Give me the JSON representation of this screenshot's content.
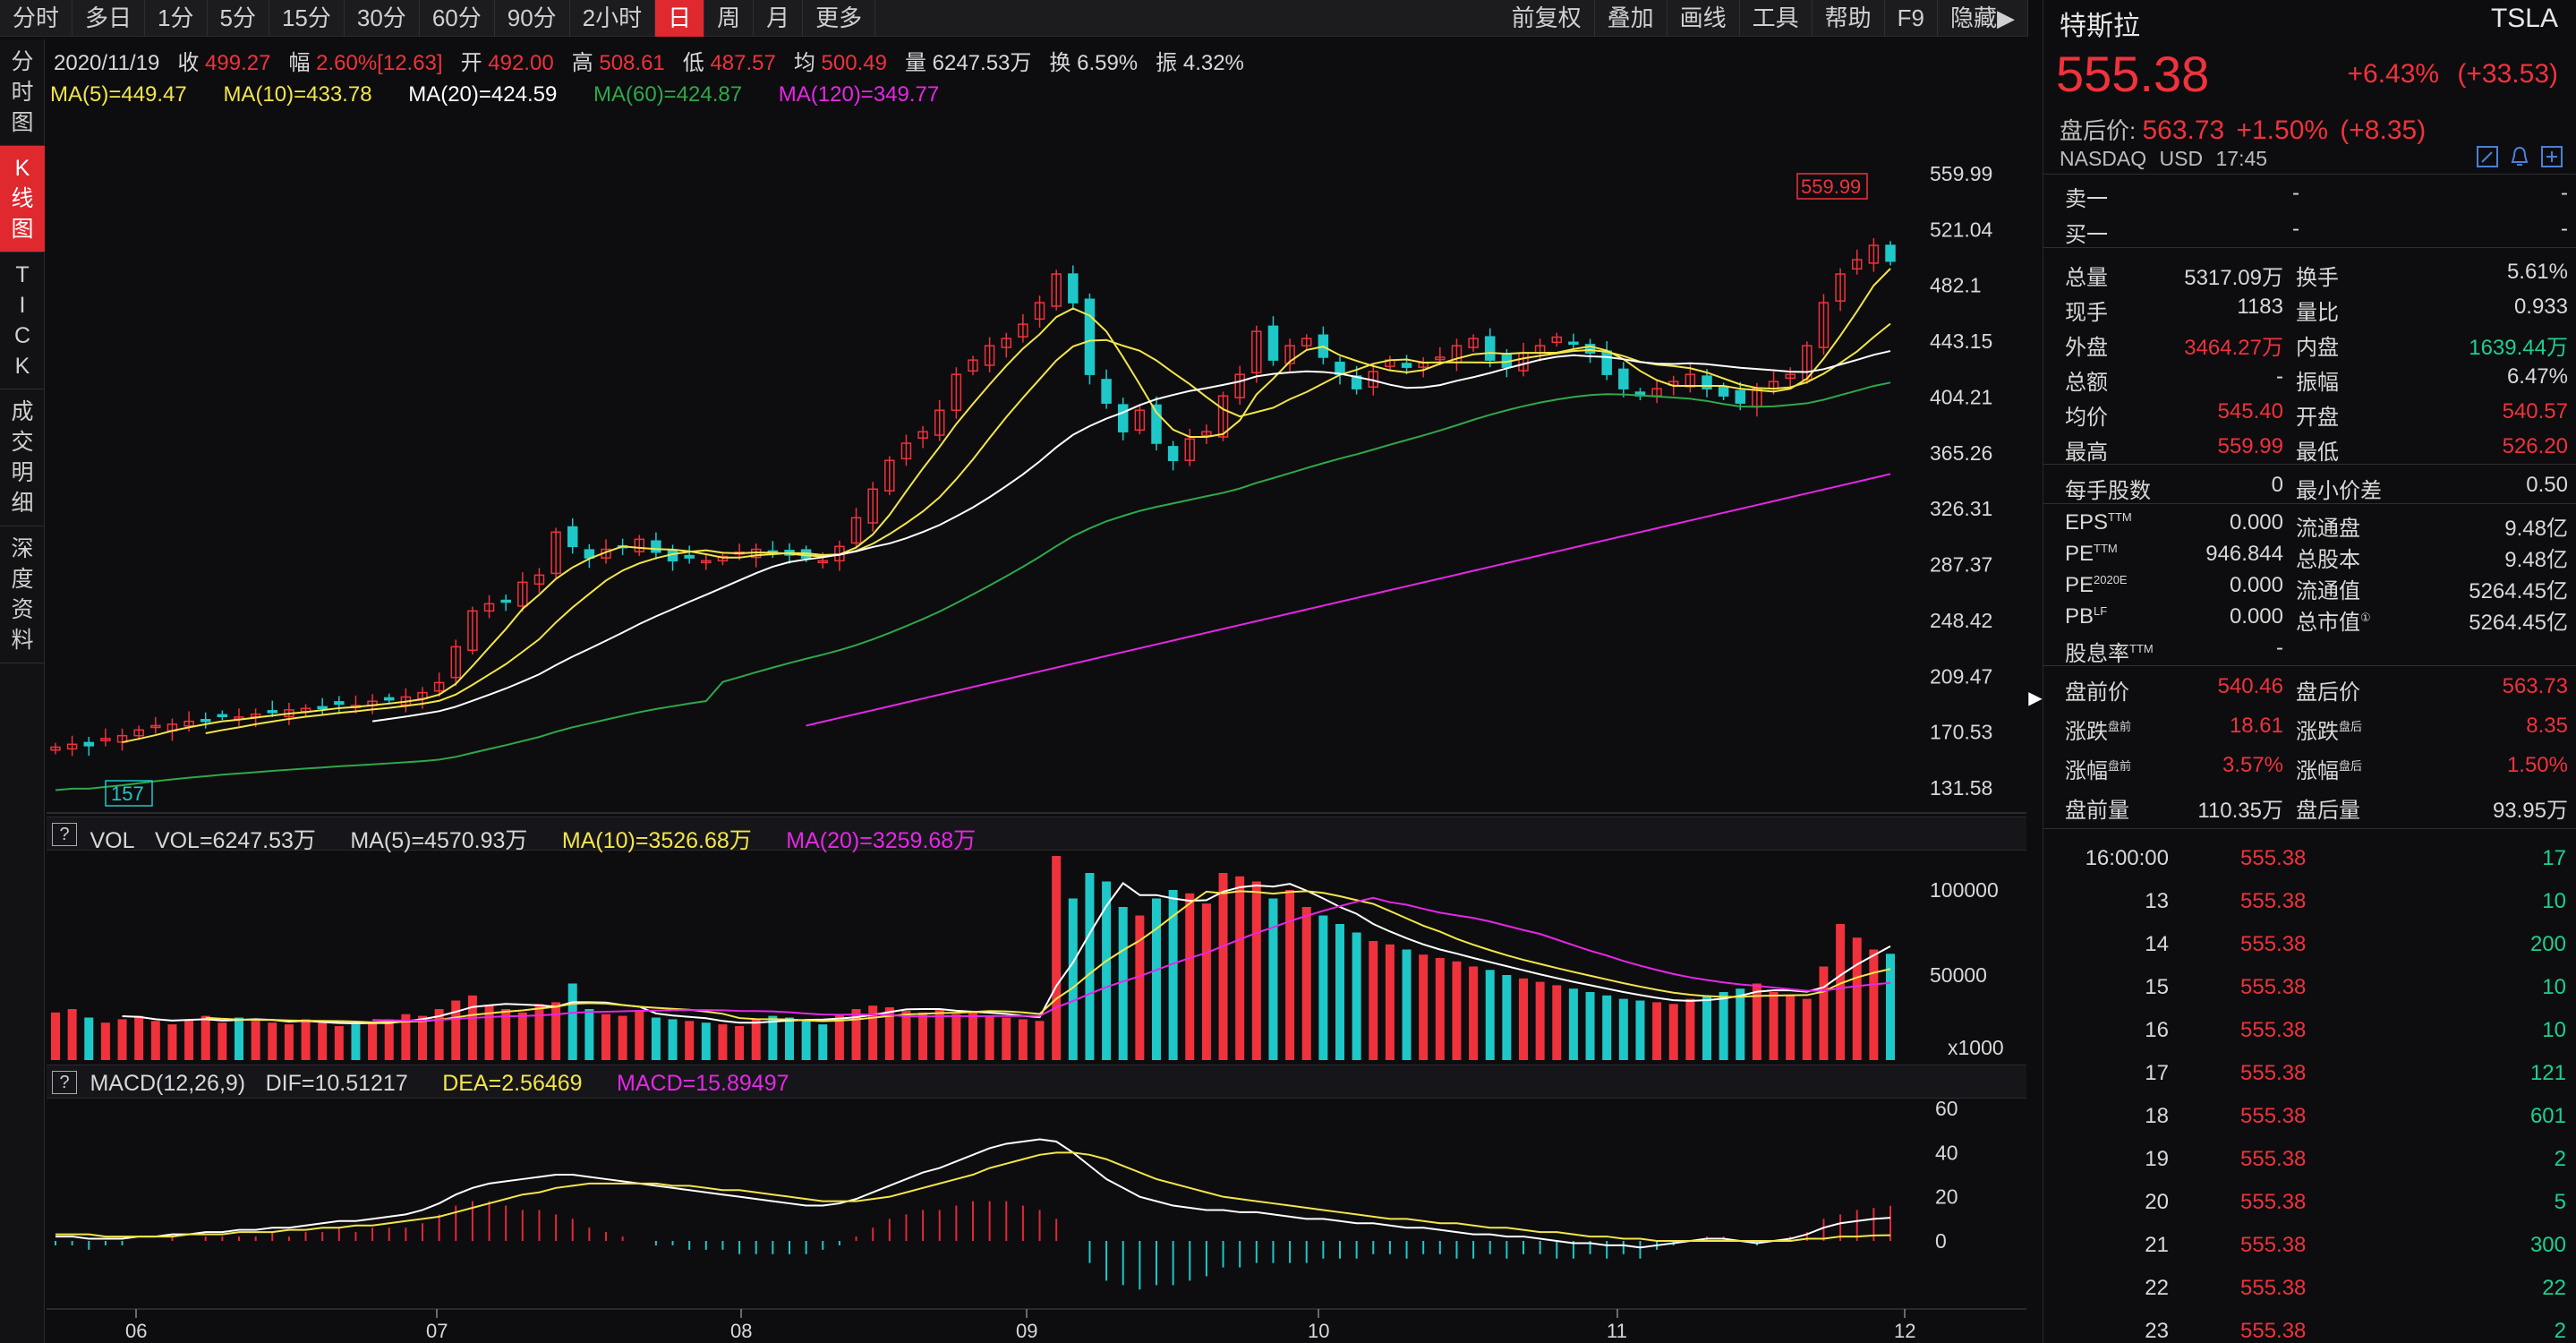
{
  "toolbar": {
    "left": [
      "分时",
      "多日",
      "1分",
      "5分",
      "15分",
      "30分",
      "60分",
      "90分",
      "2小时",
      "日",
      "周",
      "月",
      "更多"
    ],
    "active_index": 9,
    "right": [
      "前复权",
      "叠加",
      "画线",
      "工具",
      "帮助",
      "F9",
      "隐藏▶"
    ]
  },
  "left_tabs": [
    {
      "label": "分时图",
      "active": false
    },
    {
      "label": "K线图",
      "active": true
    },
    {
      "label": "TICK",
      "active": false
    },
    {
      "label": "成交明细",
      "active": false
    },
    {
      "label": "深度资料",
      "active": false
    }
  ],
  "info_bar": {
    "date": "2020/11/19",
    "close_label": "收",
    "close": "499.27",
    "range_label": "幅",
    "range": "2.60%[12.63]",
    "open_label": "开",
    "open": "492.00",
    "high_label": "高",
    "high": "508.61",
    "low_label": "低",
    "low": "487.57",
    "avg_label": "均",
    "avg": "500.49",
    "vol_label": "量",
    "vol": "6247.53万",
    "turn_label": "换",
    "turn": "6.59%",
    "amp_label": "振",
    "amp": "4.32%"
  },
  "ma_bar": {
    "ma5": "MA(5)=449.47",
    "ma10": "MA(10)=433.78",
    "ma20": "MA(20)=424.59",
    "ma60": "MA(60)=424.87",
    "ma120": "MA(120)=349.77"
  },
  "colors": {
    "up": "#f0323c",
    "down": "#1ec8c8",
    "ma5": "#ffffff",
    "ma10": "#f3e54a",
    "ma20": "#ffffff",
    "ma60": "#2fa84a",
    "ma120": "#e627e6",
    "macd_pos": "#e0283a",
    "macd_neg": "#1ec8c8",
    "accent": "#e0282f"
  },
  "price_axis": [
    "559.99",
    "521.04",
    "482.1",
    "443.15",
    "404.21",
    "365.26",
    "326.31",
    "287.37",
    "248.42",
    "209.47",
    "170.53",
    "131.58"
  ],
  "high_marker": "559.99",
  "low_marker": "157",
  "vol_head": {
    "name": "VOL",
    "vol": "VOL=6247.53万",
    "ma5": "MA(5)=4570.93万",
    "ma10": "MA(10)=3526.68万",
    "ma20": "MA(20)=3259.68万"
  },
  "vol_axis": [
    "100000",
    "50000",
    "x1000"
  ],
  "macd_head": {
    "name": "MACD(12,26,9)",
    "dif": "DIF=10.51217",
    "dea": "DEA=2.56469",
    "macd": "MACD=15.89497"
  },
  "macd_axis": [
    "60",
    "40",
    "20",
    "0"
  ],
  "x_axis": [
    "06",
    "07",
    "08",
    "09",
    "10",
    "11",
    "12"
  ],
  "chart_data": {
    "type": "candlestick",
    "ylim": [
      131.58,
      559.99
    ],
    "series_close": [
      160,
      162,
      161,
      166,
      168,
      172,
      175,
      176,
      178,
      179,
      182,
      181,
      183,
      185,
      186,
      187,
      188,
      190,
      189,
      192,
      193,
      195,
      198,
      205,
      230,
      255,
      260,
      262,
      275,
      280,
      310,
      300,
      292,
      298,
      300,
      305,
      296,
      290,
      292,
      290,
      293,
      296,
      298,
      296,
      294,
      292,
      290,
      300,
      320,
      340,
      360,
      372,
      380,
      395,
      420,
      430,
      440,
      445,
      455,
      470,
      490,
      470,
      420,
      400,
      380,
      395,
      372,
      360,
      375,
      380,
      405,
      420,
      450,
      430,
      440,
      445,
      432,
      420,
      410,
      422,
      430,
      425,
      428,
      432,
      440,
      445,
      430,
      425,
      435,
      440,
      446,
      442,
      435,
      420,
      410,
      405,
      410,
      415,
      420,
      410,
      405,
      400,
      410,
      415,
      420,
      440,
      470,
      490,
      500,
      510,
      499
    ],
    "volume": [
      28000,
      30000,
      25000,
      22000,
      24000,
      26000,
      23000,
      21000,
      24000,
      26000,
      22000,
      25000,
      23000,
      22000,
      21000,
      24000,
      22000,
      20000,
      21000,
      22000,
      24000,
      27000,
      26000,
      30000,
      35000,
      38000,
      32000,
      30000,
      28000,
      33000,
      34000,
      45000,
      30000,
      27000,
      26000,
      29000,
      25000,
      24000,
      23000,
      22000,
      21000,
      20000,
      24000,
      26000,
      25000,
      23000,
      21000,
      27000,
      30000,
      32000,
      31000,
      29000,
      28000,
      30000,
      27000,
      28000,
      26000,
      25000,
      24000,
      23000,
      120000,
      95000,
      110000,
      105000,
      90000,
      85000,
      95000,
      100000,
      98000,
      92000,
      110000,
      108000,
      105000,
      95000,
      100000,
      90000,
      85000,
      80000,
      75000,
      70000,
      68000,
      65000,
      62000,
      60000,
      58000,
      55000,
      53000,
      50000,
      48000,
      46000,
      44000,
      42000,
      40000,
      38000,
      36000,
      35000,
      34000,
      33000,
      36000,
      38000,
      40000,
      42000,
      45000,
      40000,
      38000,
      36000,
      55000,
      80000,
      72000,
      65000,
      62475
    ],
    "macd_dif": [
      2,
      2,
      1,
      1,
      1,
      2,
      2,
      3,
      3,
      4,
      4,
      5,
      5,
      6,
      6,
      7,
      8,
      9,
      9,
      10,
      11,
      12,
      14,
      17,
      21,
      24,
      26,
      27,
      28,
      29,
      30,
      30,
      29,
      28,
      27,
      26,
      25,
      24,
      23,
      22,
      21,
      20,
      19,
      18,
      17,
      16,
      16,
      17,
      19,
      22,
      25,
      28,
      31,
      33,
      36,
      39,
      42,
      44,
      45,
      46,
      45,
      40,
      34,
      28,
      24,
      20,
      18,
      16,
      15,
      14,
      14,
      13,
      13,
      12,
      11,
      10,
      10,
      9,
      8,
      8,
      7,
      6,
      6,
      5,
      4,
      3,
      3,
      2,
      2,
      1,
      0,
      -1,
      -1,
      -2,
      -2,
      -3,
      -2,
      -1,
      0,
      1,
      1,
      0,
      -1,
      0,
      1,
      3,
      6,
      8,
      9,
      10,
      10.5
    ],
    "macd_dea": [
      3,
      3,
      3,
      2,
      2,
      2,
      2,
      2,
      3,
      3,
      3,
      4,
      4,
      4,
      5,
      5,
      6,
      6,
      7,
      7,
      8,
      9,
      10,
      11,
      13,
      15,
      17,
      19,
      21,
      22,
      24,
      25,
      26,
      26,
      26,
      26,
      26,
      25,
      25,
      24,
      23,
      23,
      22,
      21,
      20,
      19,
      18,
      18,
      18,
      19,
      20,
      22,
      24,
      26,
      28,
      30,
      33,
      35,
      37,
      39,
      40,
      40,
      39,
      37,
      34,
      31,
      28,
      26,
      24,
      22,
      20,
      19,
      18,
      17,
      16,
      15,
      14,
      13,
      12,
      11,
      10,
      10,
      9,
      8,
      8,
      7,
      6,
      6,
      5,
      4,
      4,
      3,
      2,
      2,
      1,
      1,
      0,
      0,
      0,
      0,
      0,
      0,
      0,
      0,
      0,
      1,
      1,
      2,
      2,
      2.5,
      2.56
    ]
  },
  "right_panel": {
    "name": "特斯拉",
    "ticker": "TSLA",
    "price": "555.38",
    "change_pct": "+6.43%",
    "change": "(+33.53)",
    "after_label": "盘后价:",
    "after_price": "563.73",
    "after_pct": "+1.50%",
    "after_change": "(+8.35)",
    "exchange": "NASDAQ",
    "currency": "USD",
    "time": "17:45",
    "bid_ask": [
      {
        "label": "卖一",
        "price": "-",
        "vol": "-"
      },
      {
        "label": "买一",
        "price": "-",
        "vol": "-"
      }
    ],
    "stats": [
      [
        "总量",
        "5317.09万",
        "换手",
        "5.61%",
        "w",
        "w"
      ],
      [
        "现手",
        "1183",
        "量比",
        "0.933",
        "w",
        "w"
      ],
      [
        "外盘",
        "3464.27万",
        "内盘",
        "1639.44万",
        "r",
        "g"
      ],
      [
        "总额",
        "-",
        "振幅",
        "6.47%",
        "w",
        "w"
      ],
      [
        "均价",
        "545.40",
        "开盘",
        "540.57",
        "r",
        "r"
      ],
      [
        "最高",
        "559.99",
        "最低",
        "526.20",
        "r",
        "r"
      ]
    ],
    "shares": [
      "每手股数",
      "0",
      "最小价差",
      "0.50"
    ],
    "fund": [
      [
        "EPS",
        "TTM",
        "0.000",
        "流通盘",
        "",
        "9.48亿"
      ],
      [
        "PE",
        "TTM",
        "946.844",
        "总股本",
        "",
        "9.48亿"
      ],
      [
        "PE",
        "2020E",
        "0.000",
        "流通值",
        "",
        "5264.45亿"
      ],
      [
        "PB",
        "LF",
        "0.000",
        "总市值",
        "①",
        "5264.45亿"
      ],
      [
        "股息率",
        "TTM",
        "-",
        "",
        "",
        ""
      ]
    ],
    "pre_post": [
      [
        "盘前价",
        "",
        "540.46",
        "盘后价",
        "",
        "563.73",
        "r",
        "r"
      ],
      [
        "涨跌",
        "盘前",
        "18.61",
        "涨跌",
        "盘后",
        "8.35",
        "r",
        "r"
      ],
      [
        "涨幅",
        "盘前",
        "3.57%",
        "涨幅",
        "盘后",
        "1.50%",
        "r",
        "r"
      ],
      [
        "盘前量",
        "",
        "110.35万",
        "盘后量",
        "",
        "93.95万",
        "w",
        "w"
      ]
    ],
    "ticks": [
      [
        "16:00:00",
        "555.38",
        "17"
      ],
      [
        "13",
        "555.38",
        "10"
      ],
      [
        "14",
        "555.38",
        "200"
      ],
      [
        "15",
        "555.38",
        "10"
      ],
      [
        "16",
        "555.38",
        "10"
      ],
      [
        "17",
        "555.38",
        "121"
      ],
      [
        "18",
        "555.38",
        "601"
      ],
      [
        "19",
        "555.38",
        "2"
      ],
      [
        "20",
        "555.38",
        "5"
      ],
      [
        "21",
        "555.38",
        "300"
      ],
      [
        "22",
        "555.38",
        "22"
      ],
      [
        "23",
        "555.38",
        "2"
      ]
    ]
  }
}
